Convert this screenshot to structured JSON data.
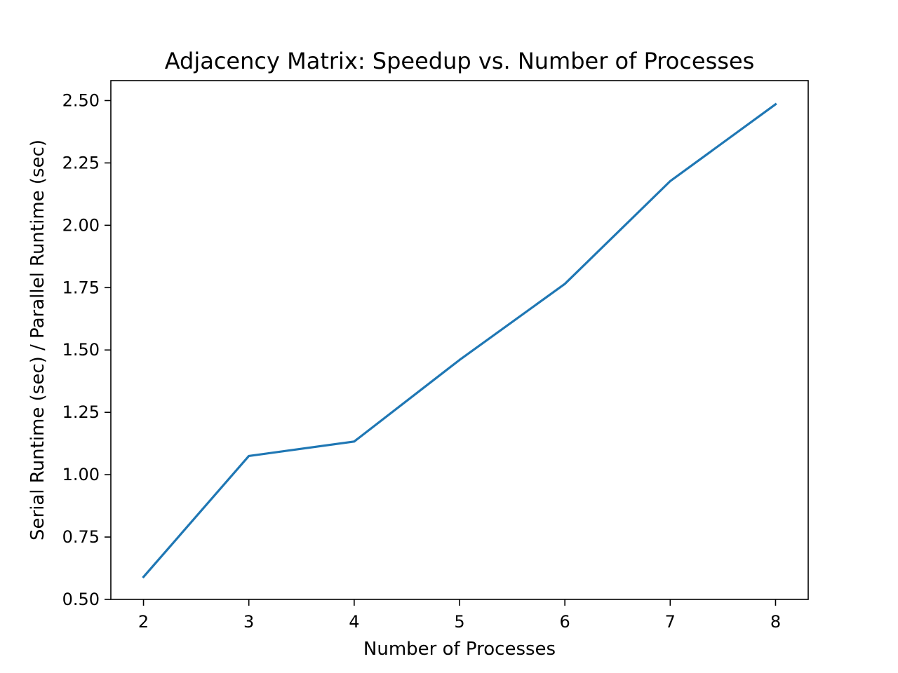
{
  "chart_data": {
    "type": "line",
    "title": "Adjacency Matrix: Speedup vs. Number of Processes",
    "xlabel": "Number of Processes",
    "ylabel": "Serial Runtime (sec) / Parallel Runtime (sec)",
    "x": [
      2,
      3,
      4,
      5,
      6,
      7,
      8
    ],
    "series": [
      {
        "values": [
          0.59,
          1.075,
          1.133,
          1.46,
          1.765,
          2.177,
          2.485
        ],
        "color": "#1f77b4"
      }
    ],
    "xlim": [
      1.69,
      8.31
    ],
    "ylim": [
      0.5,
      2.58
    ],
    "xticks": [
      2,
      3,
      4,
      5,
      6,
      7,
      8
    ],
    "yticks": [
      0.5,
      0.75,
      1.0,
      1.25,
      1.5,
      1.75,
      2.0,
      2.25,
      2.5
    ],
    "ytick_labels": [
      "0.50",
      "0.75",
      "1.00",
      "1.25",
      "1.50",
      "1.75",
      "2.00",
      "2.25",
      "2.50"
    ],
    "grid": false,
    "legend": "none"
  }
}
